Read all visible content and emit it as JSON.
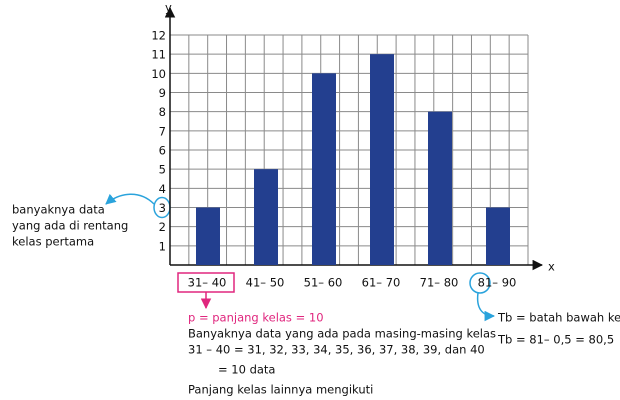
{
  "chart_data": {
    "type": "bar",
    "categories": [
      "31– 40",
      "41– 50",
      "51– 60",
      "61– 70",
      "71– 80",
      "81– 90"
    ],
    "values": [
      3,
      5,
      10,
      11,
      8,
      3
    ],
    "color": "#233f8f",
    "ylim": [
      0,
      12
    ],
    "yticks": [
      1,
      2,
      3,
      4,
      5,
      6,
      7,
      8,
      9,
      10,
      11,
      12
    ],
    "grid": true,
    "x_label": "x",
    "y_label": "y",
    "annotations": [
      "banyaknya data",
      "yang ada di rentang",
      "kelas pertama",
      "p = panjang kelas = 10",
      "Banyaknya data yang ada pada masing-masing kelas",
      "31 – 40 = 31, 32, 33, 34, 35, 36, 37, 38, 39, dan 40",
      "= 10 data",
      "Panjang kelas lainnya mengikuti",
      "Tb = batah bawah kelas",
      "Tb = 81– 0,5 = 80,5"
    ]
  }
}
